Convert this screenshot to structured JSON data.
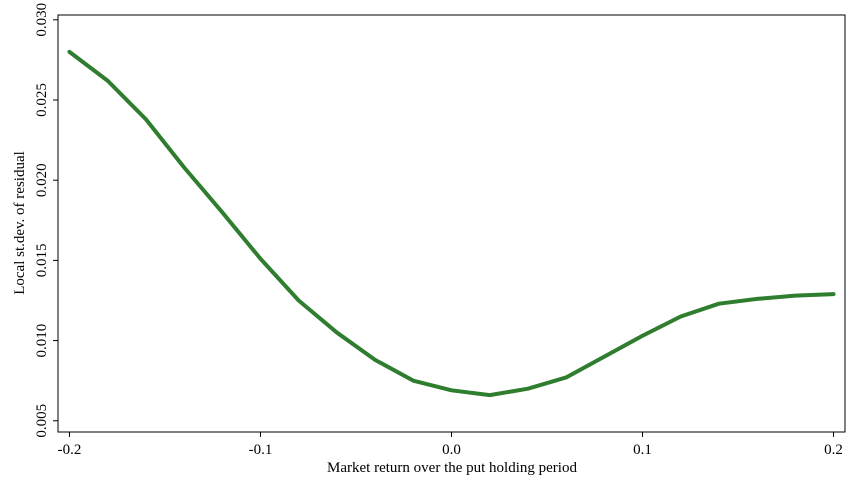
{
  "chart_data": {
    "type": "line",
    "xlabel": "Market return over the put holding period",
    "ylabel": "Local st.dev. of residual",
    "x": [
      -0.2,
      -0.18,
      -0.16,
      -0.14,
      -0.12,
      -0.1,
      -0.08,
      -0.06,
      -0.04,
      -0.02,
      0.0,
      0.02,
      0.04,
      0.06,
      0.08,
      0.1,
      0.12,
      0.14,
      0.16,
      0.18,
      0.2
    ],
    "series": [
      {
        "color": "#2f7d2f",
        "values": [
          0.028,
          0.0262,
          0.0238,
          0.0208,
          0.018,
          0.0151,
          0.0125,
          0.0105,
          0.0088,
          0.0075,
          0.0069,
          0.0066,
          0.007,
          0.0077,
          0.009,
          0.0103,
          0.0115,
          0.0123,
          0.0126,
          0.0128,
          0.0129
        ]
      }
    ],
    "xlim": [
      -0.206,
      0.206
    ],
    "ylim": [
      0.0043,
      0.0303
    ],
    "xticks": [
      -0.2,
      -0.1,
      {
        "value": 0,
        "label": "0.0"
      },
      0.1,
      0.2
    ],
    "yticks": [
      0.005,
      {
        "value": 0.01,
        "label": "0.010"
      },
      0.015,
      {
        "value": 0.02,
        "label": "0.020"
      },
      0.025,
      {
        "value": 0.03,
        "label": "0.030"
      }
    ]
  }
}
